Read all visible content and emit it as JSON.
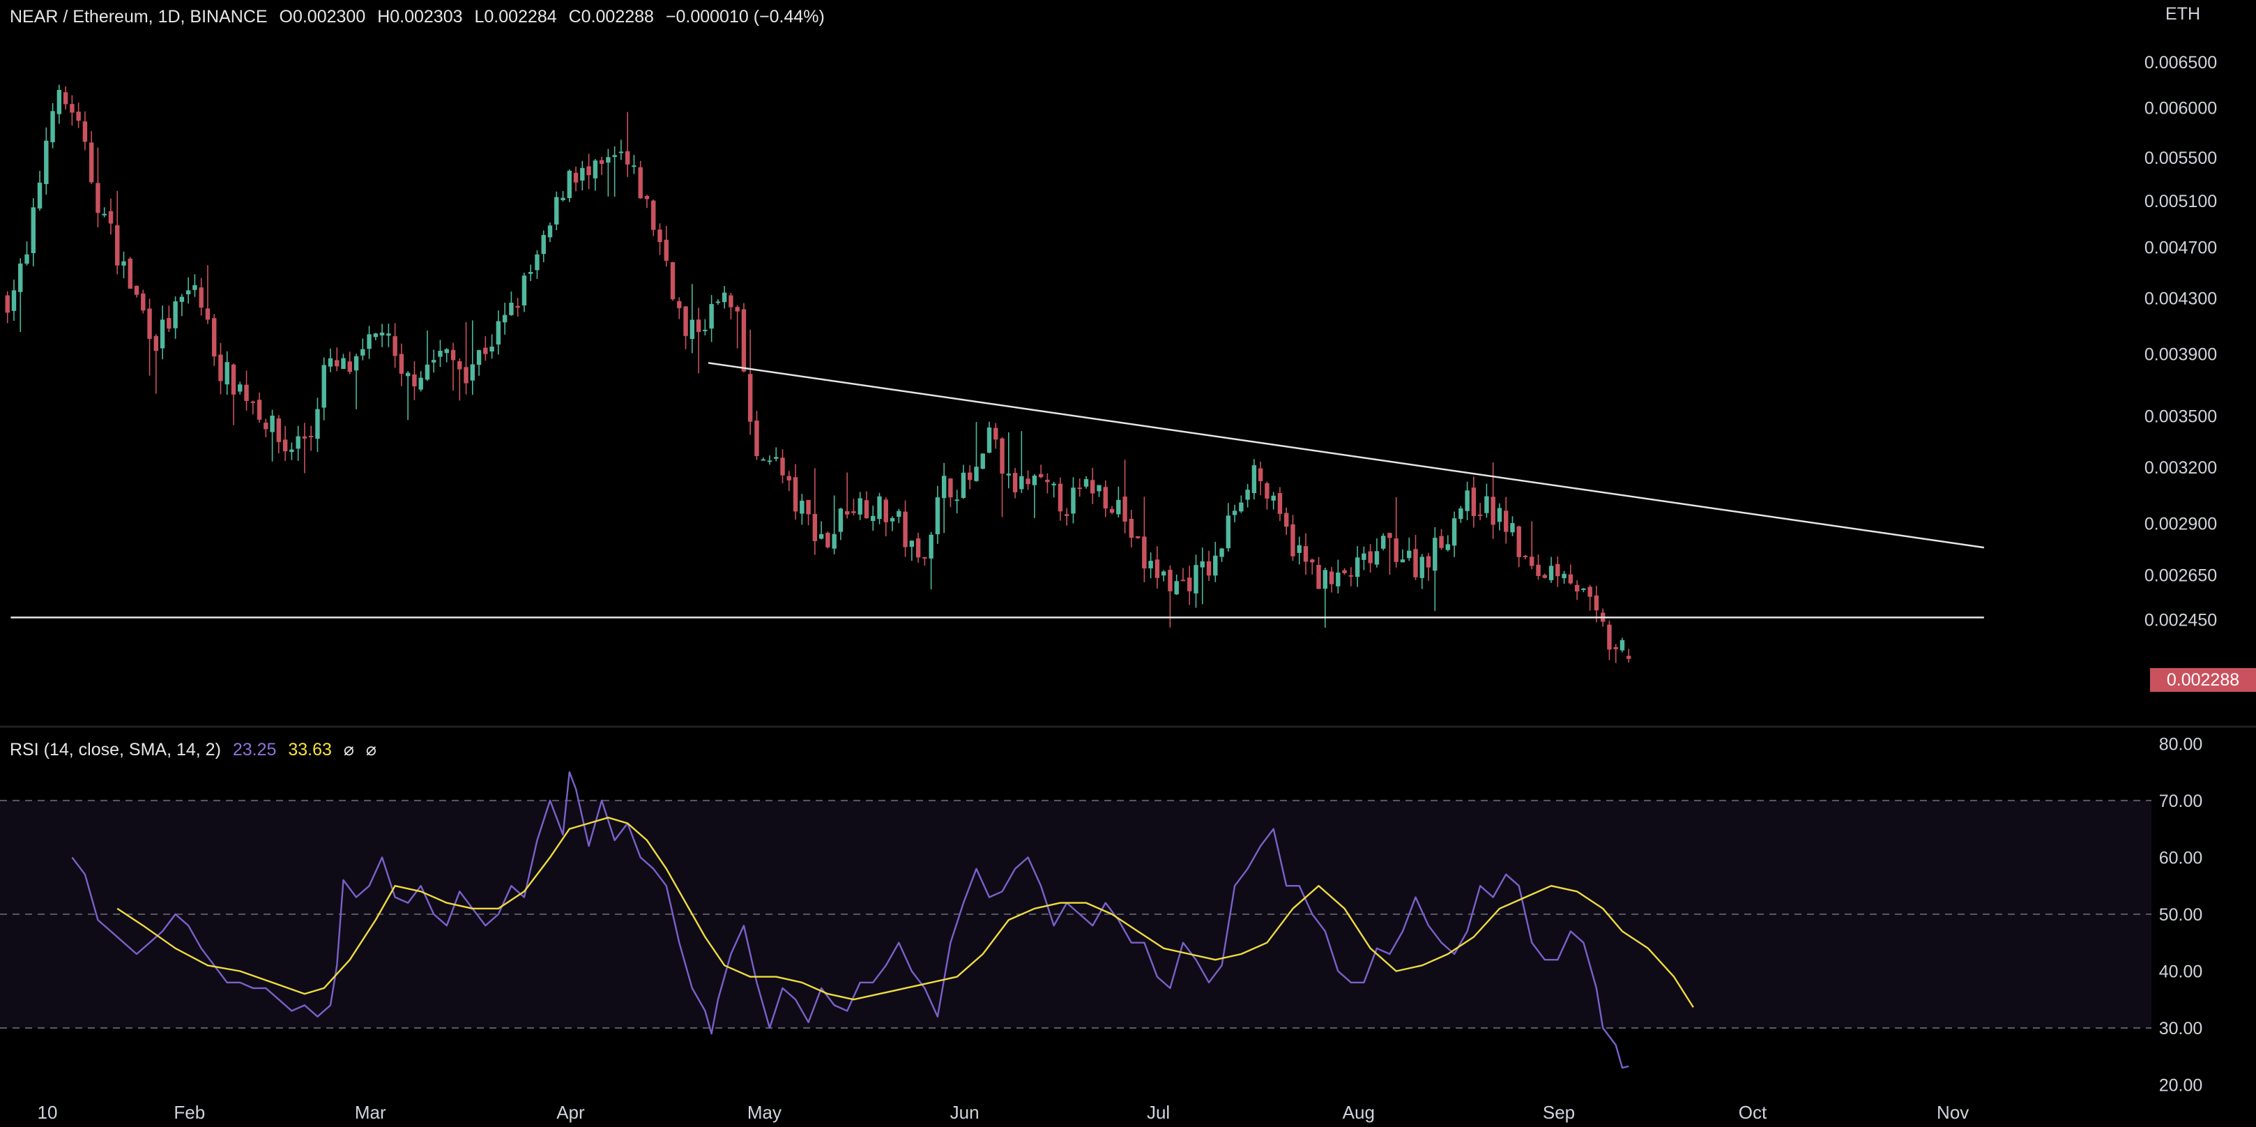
{
  "header": {
    "symbol": "NEAR / Ethereum, 1D, BINANCE",
    "open": "O0.002300",
    "high": "H0.002303",
    "low": "L0.002284",
    "close": "C0.002288",
    "change": "−0.000010 (−0.44%)",
    "currency": "ETH",
    "last_price": "0.002288"
  },
  "rsi_legend": {
    "label": "RSI (14, close, SMA, 14, 2)",
    "rsi_value": "23.25",
    "sma_value": "33.63",
    "icon_a": "⌀",
    "icon_b": "⌀"
  },
  "colors": {
    "up": "#4fb89e",
    "down": "#c9525e",
    "rsi_line": "#7b61c9",
    "sma_line": "#f0dc3c",
    "trend_line": "#e6e6e6",
    "rsi_band": "#0e0b17"
  },
  "chart_data": [
    {
      "type": "candlestick",
      "title": "NEAR / Ethereum, 1D, BINANCE",
      "ylabel": "ETH",
      "y_scale": "log",
      "ylim": [
        0.0021,
        0.0069
      ],
      "y_ticks": [
        "0.006500",
        "0.006000",
        "0.005500",
        "0.005100",
        "0.004700",
        "0.004300",
        "0.003900",
        "0.003500",
        "0.003200",
        "0.002900",
        "0.002650",
        "0.002450"
      ],
      "x_ticks": [
        "10",
        "Feb",
        "Mar",
        "Apr",
        "May",
        "Jun",
        "Jul",
        "Aug",
        "Sep",
        "Oct",
        "Nov"
      ],
      "x_tick_days": [
        0,
        22,
        50,
        81,
        111,
        142,
        172,
        203,
        234,
        264,
        295
      ],
      "anchors": [
        [
          -1,
          0.0043
        ],
        [
          2,
          0.0046
        ],
        [
          6,
          0.0061
        ],
        [
          9,
          0.006
        ],
        [
          13,
          0.0051
        ],
        [
          18,
          0.0044
        ],
        [
          22,
          0.004
        ],
        [
          28,
          0.0044
        ],
        [
          32,
          0.0038
        ],
        [
          37,
          0.0036
        ],
        [
          42,
          0.0033
        ],
        [
          46,
          0.0034
        ],
        [
          48,
          0.0038
        ],
        [
          53,
          0.0038
        ],
        [
          57,
          0.0041
        ],
        [
          60,
          0.0037
        ],
        [
          66,
          0.0039
        ],
        [
          70,
          0.0038
        ],
        [
          74,
          0.004
        ],
        [
          77,
          0.0042
        ],
        [
          82,
          0.0047
        ],
        [
          86,
          0.0054
        ],
        [
          89,
          0.0053
        ],
        [
          94,
          0.0055
        ],
        [
          97,
          0.0052
        ],
        [
          101,
          0.0046
        ],
        [
          104,
          0.004
        ],
        [
          108,
          0.0042
        ],
        [
          110,
          0.0043
        ],
        [
          112,
          0.0041
        ],
        [
          115,
          0.0032
        ],
        [
          117,
          0.0033
        ],
        [
          121,
          0.003
        ],
        [
          126,
          0.0028
        ],
        [
          129,
          0.003
        ],
        [
          133,
          0.003
        ],
        [
          137,
          0.0029
        ],
        [
          140,
          0.0027
        ],
        [
          144,
          0.0031
        ],
        [
          147,
          0.0031
        ],
        [
          150,
          0.0032
        ],
        [
          151,
          0.0034
        ],
        [
          154,
          0.0031
        ],
        [
          158,
          0.0031
        ],
        [
          163,
          0.003
        ],
        [
          167,
          0.0031
        ],
        [
          171,
          0.003
        ],
        [
          175,
          0.0027
        ],
        [
          180,
          0.0026
        ],
        [
          186,
          0.0027
        ],
        [
          189,
          0.003
        ],
        [
          192,
          0.0032
        ],
        [
          196,
          0.0029
        ],
        [
          200,
          0.0027
        ],
        [
          204,
          0.0026
        ],
        [
          209,
          0.0027
        ],
        [
          213,
          0.0028
        ],
        [
          217,
          0.0027
        ],
        [
          221,
          0.0028
        ],
        [
          224,
          0.003
        ],
        [
          227,
          0.003
        ],
        [
          231,
          0.0029
        ],
        [
          235,
          0.00265
        ],
        [
          240,
          0.0027
        ],
        [
          242,
          0.0026
        ],
        [
          244,
          0.0025
        ],
        [
          247,
          0.00235
        ],
        [
          250,
          0.002288
        ]
      ],
      "last_close": 0.002288,
      "trend_lines": [
        {
          "name": "descending resistance",
          "points": [
            [
              107.5,
              0.00384
            ],
            [
              305,
              0.00278
            ]
          ]
        },
        {
          "name": "horizontal support",
          "points": [
            [
              -0.5,
              0.00246
            ],
            [
              305,
              0.00246
            ]
          ]
        }
      ]
    },
    {
      "type": "line",
      "title": "RSI (14, close, SMA, 14, 2)",
      "ylim": [
        17,
        82
      ],
      "y_ticks": [
        "80.00",
        "70.00",
        "60.00",
        "50.00",
        "40.00",
        "30.00",
        "20.00"
      ],
      "band": [
        30,
        70
      ],
      "dashed_levels": [
        70,
        50,
        30
      ],
      "series": [
        {
          "name": "RSI",
          "values": [
            [
              9,
              60
            ],
            [
              11,
              57
            ],
            [
              13,
              49
            ],
            [
              15,
              47
            ],
            [
              17,
              45
            ],
            [
              19,
              43
            ],
            [
              21,
              45
            ],
            [
              23,
              47
            ],
            [
              25,
              50
            ],
            [
              27,
              48
            ],
            [
              29,
              44
            ],
            [
              31,
              41
            ],
            [
              33,
              38
            ],
            [
              35,
              38
            ],
            [
              37,
              37
            ],
            [
              39,
              37
            ],
            [
              41,
              35
            ],
            [
              43,
              33
            ],
            [
              45,
              34
            ],
            [
              47,
              32
            ],
            [
              49,
              34
            ],
            [
              50,
              41
            ],
            [
              51,
              56
            ],
            [
              53,
              53
            ],
            [
              55,
              55
            ],
            [
              57,
              60
            ],
            [
              59,
              53
            ],
            [
              61,
              52
            ],
            [
              63,
              55
            ],
            [
              65,
              50
            ],
            [
              67,
              48
            ],
            [
              69,
              54
            ],
            [
              71,
              51
            ],
            [
              73,
              48
            ],
            [
              75,
              50
            ],
            [
              77,
              55
            ],
            [
              79,
              53
            ],
            [
              81,
              63
            ],
            [
              83,
              70
            ],
            [
              85,
              64
            ],
            [
              86,
              75
            ],
            [
              87,
              72
            ],
            [
              89,
              62
            ],
            [
              91,
              70
            ],
            [
              93,
              63
            ],
            [
              95,
              66
            ],
            [
              97,
              60
            ],
            [
              99,
              58
            ],
            [
              101,
              55
            ],
            [
              103,
              45
            ],
            [
              105,
              37
            ],
            [
              107,
              33
            ],
            [
              108,
              29
            ],
            [
              109,
              35
            ],
            [
              111,
              43
            ],
            [
              113,
              48
            ],
            [
              115,
              38
            ],
            [
              117,
              30
            ],
            [
              119,
              37
            ],
            [
              121,
              35
            ],
            [
              123,
              31
            ],
            [
              125,
              37
            ],
            [
              127,
              34
            ],
            [
              129,
              33
            ],
            [
              131,
              38
            ],
            [
              133,
              38
            ],
            [
              135,
              41
            ],
            [
              137,
              45
            ],
            [
              139,
              40
            ],
            [
              141,
              37
            ],
            [
              143,
              32
            ],
            [
              145,
              45
            ],
            [
              147,
              52
            ],
            [
              149,
              58
            ],
            [
              151,
              53
            ],
            [
              153,
              54
            ],
            [
              155,
              58
            ],
            [
              157,
              60
            ],
            [
              159,
              55
            ],
            [
              161,
              48
            ],
            [
              163,
              52
            ],
            [
              165,
              50
            ],
            [
              167,
              48
            ],
            [
              169,
              52
            ],
            [
              171,
              49
            ],
            [
              173,
              45
            ],
            [
              175,
              45
            ],
            [
              177,
              39
            ],
            [
              179,
              37
            ],
            [
              181,
              45
            ],
            [
              183,
              42
            ],
            [
              185,
              38
            ],
            [
              187,
              41
            ],
            [
              189,
              55
            ],
            [
              191,
              58
            ],
            [
              193,
              62
            ],
            [
              195,
              65
            ],
            [
              197,
              55
            ],
            [
              199,
              55
            ],
            [
              201,
              50
            ],
            [
              203,
              47
            ],
            [
              205,
              40
            ],
            [
              207,
              38
            ],
            [
              209,
              38
            ],
            [
              211,
              44
            ],
            [
              213,
              43
            ],
            [
              215,
              47
            ],
            [
              217,
              53
            ],
            [
              219,
              48
            ],
            [
              221,
              45
            ],
            [
              223,
              43
            ],
            [
              225,
              47
            ],
            [
              227,
              55
            ],
            [
              229,
              53
            ],
            [
              231,
              57
            ],
            [
              233,
              55
            ],
            [
              235,
              45
            ],
            [
              237,
              42
            ],
            [
              239,
              42
            ],
            [
              241,
              47
            ],
            [
              243,
              45
            ],
            [
              245,
              37
            ],
            [
              246,
              30
            ],
            [
              248,
              27
            ],
            [
              249,
              23
            ],
            [
              250,
              23.25
            ]
          ]
        },
        {
          "name": "SMA",
          "values": [
            [
              16,
              51
            ],
            [
              20,
              48
            ],
            [
              25,
              44
            ],
            [
              30,
              41
            ],
            [
              35,
              40
            ],
            [
              40,
              38
            ],
            [
              45,
              36
            ],
            [
              48,
              37
            ],
            [
              52,
              42
            ],
            [
              56,
              49
            ],
            [
              59,
              55
            ],
            [
              63,
              54
            ],
            [
              67,
              52
            ],
            [
              71,
              51
            ],
            [
              75,
              51
            ],
            [
              79,
              54
            ],
            [
              83,
              60
            ],
            [
              86,
              65
            ],
            [
              89,
              66
            ],
            [
              92,
              67
            ],
            [
              95,
              66
            ],
            [
              98,
              63
            ],
            [
              101,
              58
            ],
            [
              104,
              52
            ],
            [
              107,
              46
            ],
            [
              110,
              41
            ],
            [
              114,
              39
            ],
            [
              118,
              39
            ],
            [
              122,
              38
            ],
            [
              126,
              36
            ],
            [
              130,
              35
            ],
            [
              134,
              36
            ],
            [
              138,
              37
            ],
            [
              142,
              38
            ],
            [
              146,
              39
            ],
            [
              150,
              43
            ],
            [
              154,
              49
            ],
            [
              158,
              51
            ],
            [
              162,
              52
            ],
            [
              166,
              52
            ],
            [
              170,
              50
            ],
            [
              174,
              47
            ],
            [
              178,
              44
            ],
            [
              182,
              43
            ],
            [
              186,
              42
            ],
            [
              190,
              43
            ],
            [
              194,
              45
            ],
            [
              198,
              51
            ],
            [
              202,
              55
            ],
            [
              206,
              51
            ],
            [
              210,
              44
            ],
            [
              214,
              40
            ],
            [
              218,
              41
            ],
            [
              222,
              43
            ],
            [
              226,
              46
            ],
            [
              230,
              51
            ],
            [
              234,
              53
            ],
            [
              238,
              55
            ],
            [
              242,
              54
            ],
            [
              246,
              51
            ],
            [
              249,
              47
            ],
            [
              253,
              44
            ],
            [
              257,
              39
            ],
            [
              260,
              33.63
            ]
          ]
        }
      ]
    }
  ]
}
